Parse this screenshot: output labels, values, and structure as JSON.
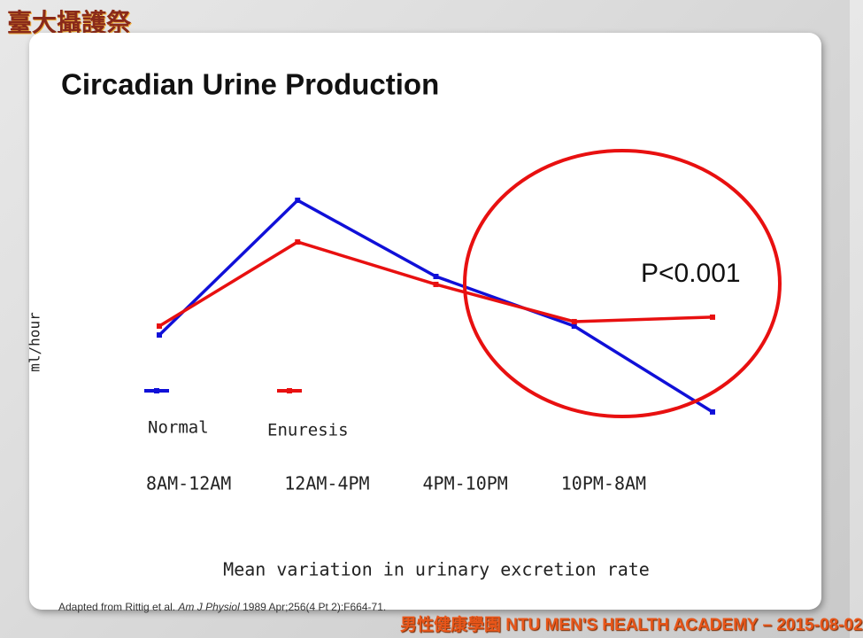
{
  "logo": "臺大攝護祭",
  "chart_data": {
    "type": "line",
    "title": "Circadian Urine Production",
    "ylabel": "ml/hour",
    "xlabel": "Mean variation in urinary excretion rate",
    "categories": [
      "8AM-12AM",
      "12AM-4PM",
      "4PM-10PM",
      "10PM-8AM",
      null
    ],
    "ylim": [
      0,
      100
    ],
    "series": [
      {
        "name": "Normal",
        "color": "#1010d8",
        "values": [
          36.4,
          90.7,
          60,
          40,
          5.4
        ]
      },
      {
        "name": "Enuresis",
        "color": "#e81010",
        "values": [
          40,
          73.9,
          56.8,
          41.8,
          43.6
        ]
      }
    ],
    "annotation": "P<0.001",
    "annotation_color": "#e81010"
  },
  "citation": {
    "before": "Adapted from Rittig et al. ",
    "journal": "Am J Physiol",
    "after": " 1989 Apr;256(4 Pt 2):F664-71."
  },
  "footer": "男性健康學園 NTU MEN'S HEALTH ACADEMY – 2015-08-02"
}
